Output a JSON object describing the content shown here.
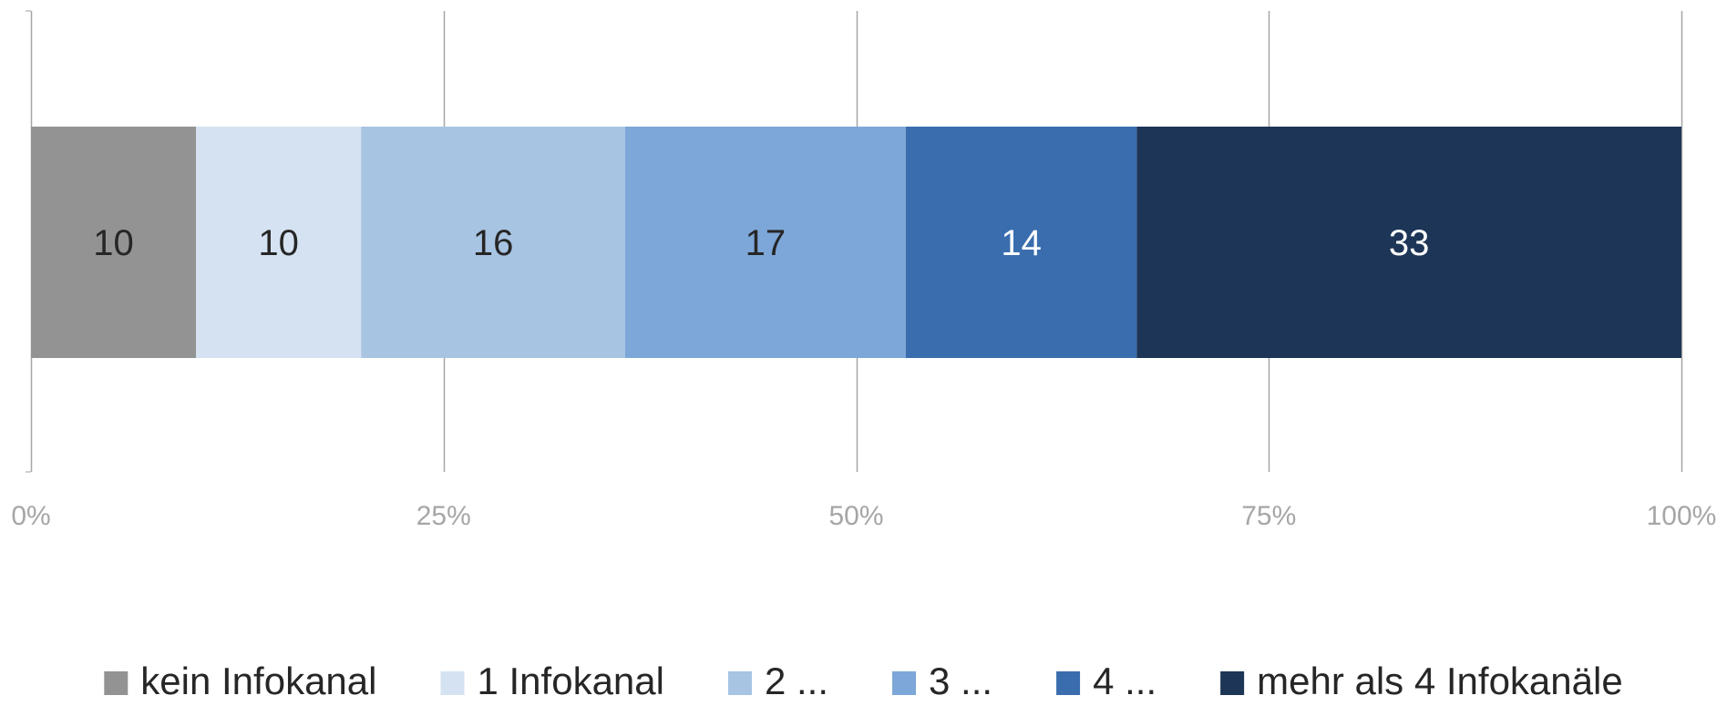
{
  "chart_data": {
    "type": "bar",
    "orientation": "horizontal",
    "stacked": "percent",
    "title": "",
    "xlabel": "",
    "ylabel": "",
    "xlim": [
      0,
      100
    ],
    "x_ticks": [
      "0%",
      "25%",
      "50%",
      "75%",
      "100%"
    ],
    "grid": true,
    "legend_position": "bottom",
    "categories": [
      ""
    ],
    "series": [
      {
        "name": "kein Infokanal",
        "values": [
          10
        ],
        "color": "#939393",
        "label_color": "#262626"
      },
      {
        "name": "1 Infokanal",
        "values": [
          10
        ],
        "color": "#d5e2f1",
        "label_color": "#262626"
      },
      {
        "name": "2 ...",
        "values": [
          16
        ],
        "color": "#a8c4e3",
        "label_color": "#262626"
      },
      {
        "name": "3 ...",
        "values": [
          17
        ],
        "color": "#7da7d8",
        "label_color": "#262626"
      },
      {
        "name": "4 ...",
        "values": [
          14
        ],
        "color": "#3a6dae",
        "label_color": "#ffffff"
      },
      {
        "name": "mehr als 4 Infokanäle",
        "values": [
          33
        ],
        "color": "#1d3556",
        "label_color": "#ffffff"
      }
    ]
  }
}
